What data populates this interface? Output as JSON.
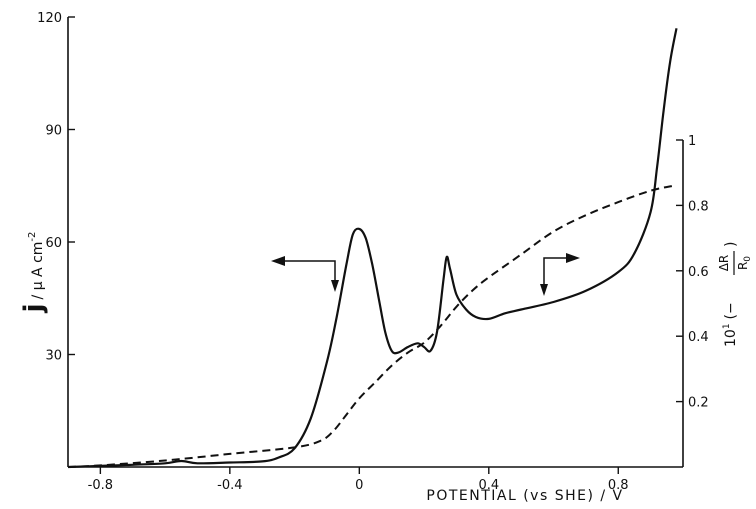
{
  "chart_data": {
    "type": "line",
    "xlabel": "POTENTIAL (vs SHE) / V",
    "ylabel_left": {
      "main": "j",
      "rest": "/ μ A  cm",
      "sup": "-2"
    },
    "ylabel_right": {
      "prefix": "10",
      "sup": "1",
      "open": "(−",
      "num": "ΔR",
      "den": "R",
      "den_sub": "0",
      "close": ")"
    },
    "xlim": [
      -0.9,
      1.0
    ],
    "ylim_left": [
      0,
      120
    ],
    "ylim_right": [
      0,
      1
    ],
    "x_ticks": [
      -0.8,
      -0.4,
      0,
      0.4,
      0.8
    ],
    "x_tick_labels": [
      "-0.8",
      "-0.4",
      "0",
      "0.4",
      "0.8"
    ],
    "y_left_ticks": [
      30,
      60,
      90,
      120
    ],
    "y_left_tick_labels": [
      "30",
      "60",
      "90",
      "120"
    ],
    "y_right_ticks": [
      0.2,
      0.4,
      0.6,
      0.8,
      1.0
    ],
    "y_right_tick_labels": [
      "0.2",
      "0.4",
      "0.6",
      "0.8",
      "1"
    ],
    "series": [
      {
        "style": "solid",
        "axis": "left",
        "x": [
          -0.9,
          -0.8,
          -0.7,
          -0.6,
          -0.55,
          -0.5,
          -0.4,
          -0.3,
          -0.25,
          -0.2,
          -0.15,
          -0.1,
          -0.07,
          -0.04,
          -0.02,
          0.0,
          0.02,
          0.04,
          0.06,
          0.08,
          0.1,
          0.12,
          0.15,
          0.18,
          0.2,
          0.22,
          0.24,
          0.26,
          0.27,
          0.28,
          0.3,
          0.33,
          0.36,
          0.4,
          0.45,
          0.5,
          0.6,
          0.7,
          0.8,
          0.85,
          0.9,
          0.92,
          0.94,
          0.96,
          0.98
        ],
        "y": [
          0,
          0.3,
          0.6,
          1,
          1.6,
          1,
          1.2,
          1.5,
          2.5,
          5,
          13,
          28,
          40,
          54,
          62,
          63.5,
          61,
          54,
          45,
          36,
          31,
          30.5,
          32,
          33,
          32,
          31,
          36,
          50,
          56,
          53,
          46,
          42,
          40,
          39.5,
          41,
          42,
          44,
          47,
          52,
          57,
          68,
          80,
          95,
          108,
          117
        ]
      },
      {
        "style": "dashed",
        "axis": "right",
        "x": [
          -0.9,
          -0.8,
          -0.6,
          -0.4,
          -0.2,
          -0.12,
          -0.08,
          -0.04,
          0.0,
          0.05,
          0.1,
          0.15,
          0.2,
          0.25,
          0.3,
          0.35,
          0.4,
          0.5,
          0.6,
          0.7,
          0.8,
          0.9,
          0.97
        ],
        "y": [
          0.0,
          0.005,
          0.02,
          0.04,
          0.06,
          0.08,
          0.11,
          0.16,
          0.21,
          0.26,
          0.31,
          0.35,
          0.38,
          0.43,
          0.49,
          0.54,
          0.58,
          0.65,
          0.72,
          0.77,
          0.81,
          0.845,
          0.86
        ]
      }
    ],
    "annotations": [
      {
        "kind": "left-arrow",
        "note": "solid curve → left axis"
      },
      {
        "kind": "right-arrow",
        "note": "dashed curve → right axis"
      }
    ]
  }
}
